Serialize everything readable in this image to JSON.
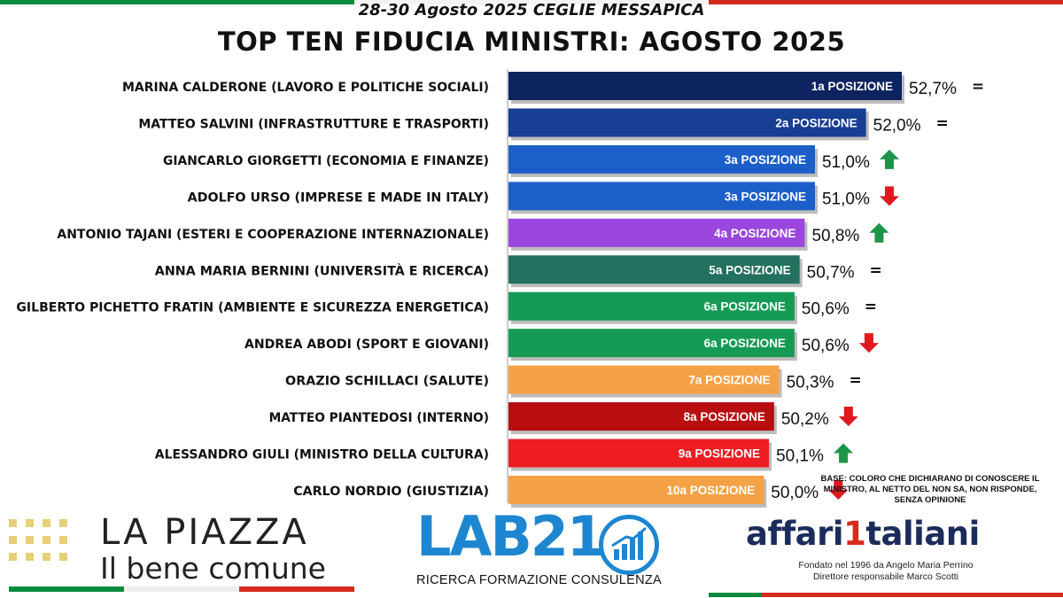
{
  "header": {
    "subtitle": "28-30 Agosto 2025 CEGLIE MESSAPICA",
    "title": "TOP TEN FIDUCIA MINISTRI:  AGOSTO 2025"
  },
  "colors": {
    "flag_green": "#0a8a3c",
    "flag_red": "#d52b1e",
    "arrow_up": "#1e9448",
    "arrow_down": "#e0191f"
  },
  "chart_data": {
    "type": "bar",
    "orientation": "horizontal",
    "title": "TOP TEN FIDUCIA MINISTRI:  AGOSTO 2025",
    "xlim": [
      45.0,
      53.0
    ],
    "grid": false,
    "categories": [
      "MARINA CALDERONE (LAVORO E POLITICHE SOCIALI)",
      "MATTEO SALVINI (INFRASTRUTTURE E TRASPORTI)",
      "GIANCARLO GIORGETTI (ECONOMIA E FINANZE)",
      "ADOLFO URSO (IMPRESE E MADE IN ITALY)",
      "ANTONIO TAJANI (ESTERI E COOPERAZIONE INTERNAZIONALE)",
      "ANNA MARIA BERNINI (UNIVERSITÀ E RICERCA)",
      "GILBERTO PICHETTO FRATIN (AMBIENTE E SICUREZZA ENERGETICA)",
      "ANDREA ABODI (SPORT E GIOVANI)",
      "ORAZIO SCHILLACI (SALUTE)",
      "MATTEO PIANTEDOSI (INTERNO)",
      "ALESSANDRO GIULI (MINISTRO DELLA CULTURA)",
      "CARLO NORDIO (GIUSTIZIA)"
    ],
    "values": [
      52.7,
      52.0,
      51.0,
      51.0,
      50.8,
      50.7,
      50.6,
      50.6,
      50.3,
      50.2,
      50.1,
      50.0
    ],
    "value_labels": [
      "52,7%",
      "52,0%",
      "51,0%",
      "51,0%",
      "50,8%",
      "50,7%",
      "50,6%",
      "50,6%",
      "50,3%",
      "50,2%",
      "50,1%",
      "50,0%"
    ],
    "positions": [
      "1a POSIZIONE",
      "2a POSIZIONE",
      "3a POSIZIONE",
      "3a POSIZIONE",
      "4a POSIZIONE",
      "5a POSIZIONE",
      "6a POSIZIONE",
      "6a POSIZIONE",
      "7a POSIZIONE",
      "8a POSIZIONE",
      "9a POSIZIONE",
      "10a POSIZIONE"
    ],
    "trends": [
      "=",
      "=",
      "up",
      "down",
      "up",
      "=",
      "=",
      "down",
      "=",
      "down",
      "up",
      "down"
    ],
    "bar_colors": [
      "#0d2461",
      "#163e92",
      "#1d5fc9",
      "#1d5fc9",
      "#9b46de",
      "#23705f",
      "#149a54",
      "#149a54",
      "#f5a145",
      "#b80e10",
      "#ee1d23",
      "#f5a145"
    ]
  },
  "note": {
    "line1": "BASE: COLORO CHE DICHIARANO DI CONOSCERE IL",
    "line2": "MINISTRO, AL NETTO DEL NON SA, NON RISPONDE,",
    "line3": "SENZA OPINIONE"
  },
  "logos": {
    "piazza_title": "LA PIAZZA",
    "piazza_sub": "Il bene comune",
    "lab_name": "LAB21",
    "lab_sub": "RICERCA FORMAZIONE CONSULENZA",
    "affari_part1": "affari",
    "affari_mark": "1",
    "affari_part2": "taliani",
    "affari_line1": "Fondato nel 1996 da Angelo Maria Perrino",
    "affari_line2": "Direttore responsabile Marco Scotti"
  }
}
